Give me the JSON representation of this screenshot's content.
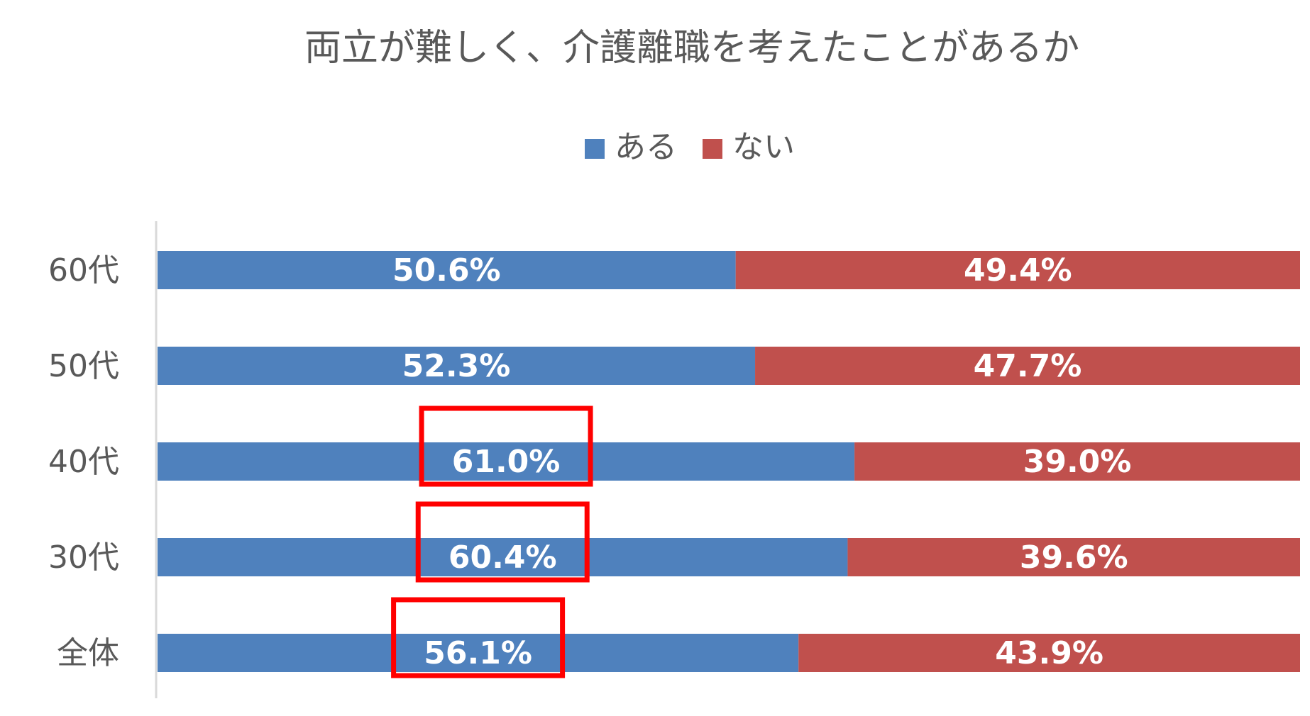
{
  "chart_data": {
    "type": "bar",
    "orientation": "horizontal",
    "stacked": "100%",
    "title": "両立が難しく、介護離職を考えたことがあるか",
    "legend_position": "top",
    "categories": [
      "60代",
      "50代",
      "40代",
      "30代",
      "全体"
    ],
    "series": [
      {
        "name": "ある",
        "color": "#4F81BD",
        "values": [
          50.6,
          52.3,
          61.0,
          60.4,
          56.1
        ],
        "labels": [
          "50.6%",
          "52.3%",
          "61.0%",
          "60.4%",
          "56.1%"
        ]
      },
      {
        "name": "ない",
        "color": "#C0504D",
        "values": [
          49.4,
          47.7,
          39.0,
          39.6,
          43.9
        ],
        "labels": [
          "49.4%",
          "47.7%",
          "39.0%",
          "39.6%",
          "43.9%"
        ]
      }
    ],
    "xlim": [
      0,
      100
    ],
    "grid": false,
    "highlighted_labels": [
      "40代",
      "30代",
      "全体"
    ],
    "highlight_color": "#FF0000"
  }
}
